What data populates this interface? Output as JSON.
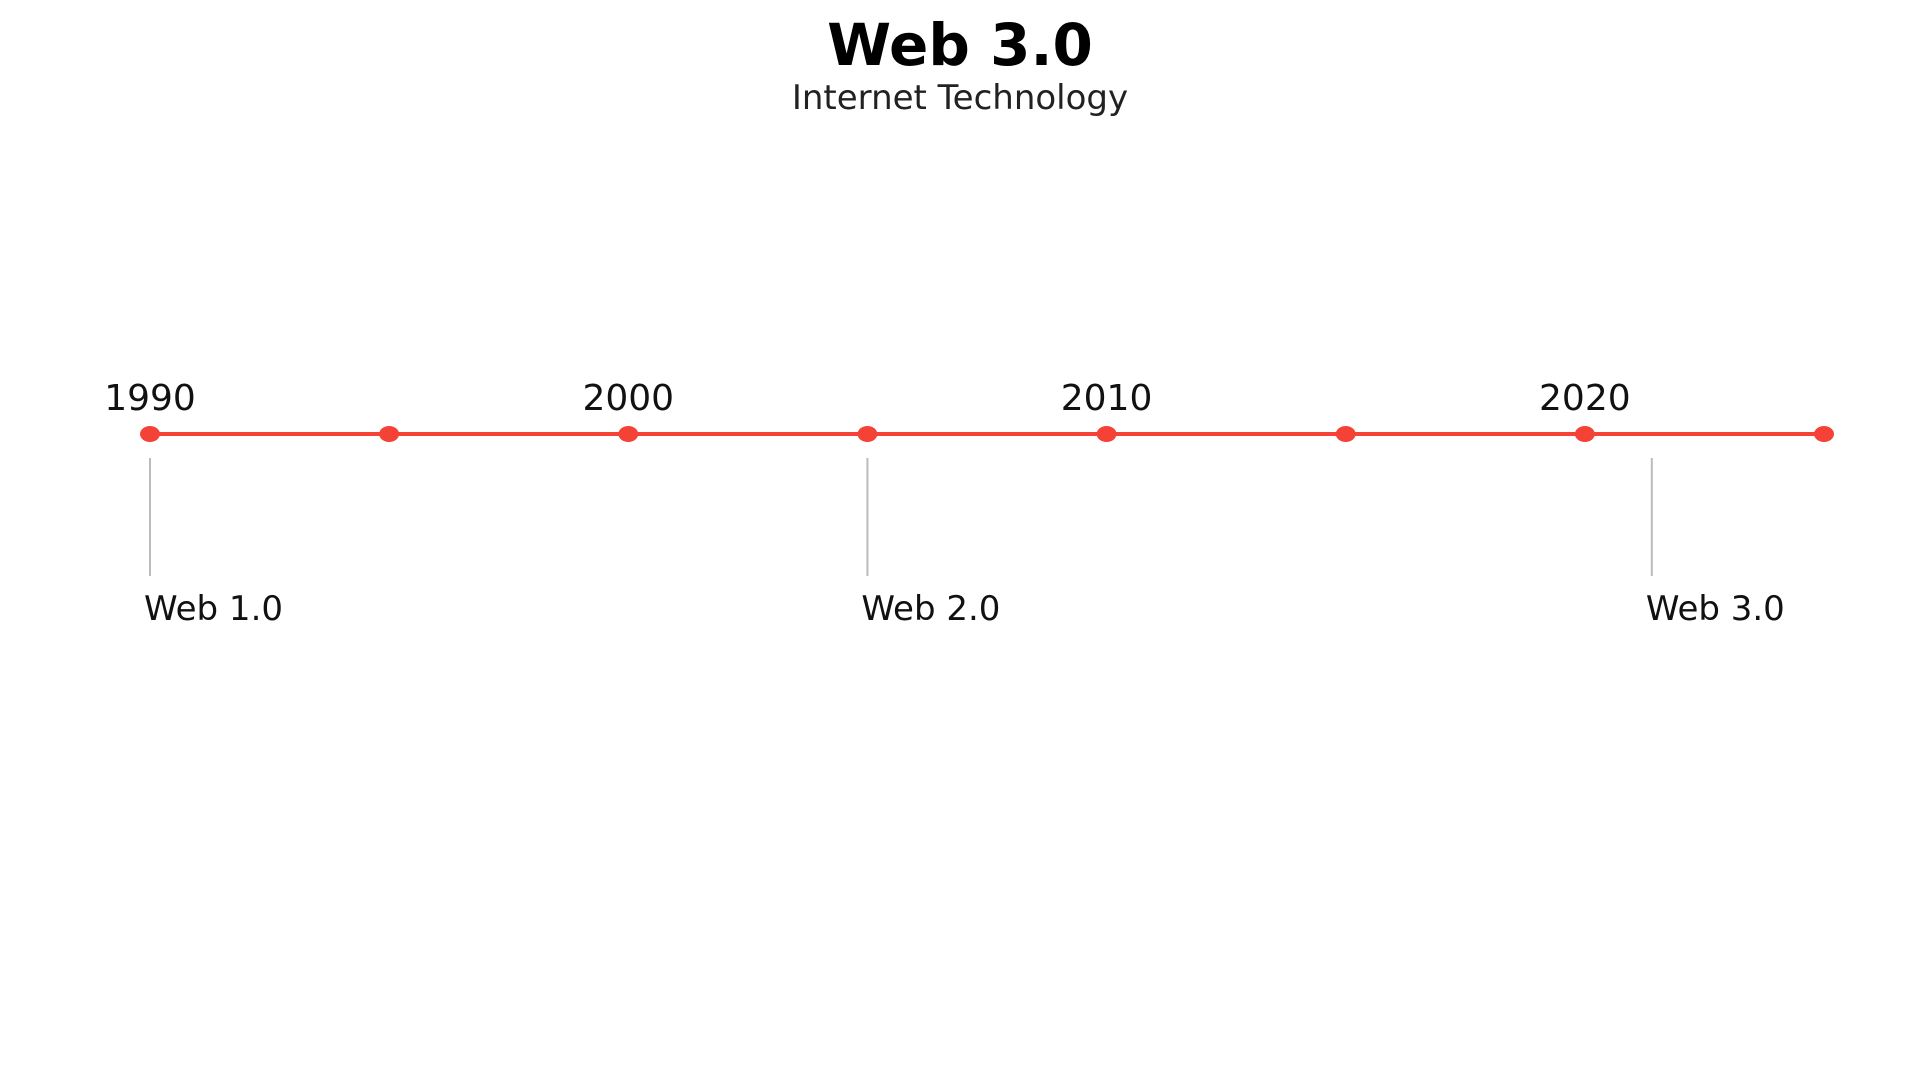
{
  "header": {
    "title": "Web 3.0",
    "subtitle": "Internet Technology"
  },
  "timeline": {
    "line_color": "#f44336",
    "connector_color": "#bbbbbb",
    "start_year": 1990,
    "end_year": 2025,
    "marker_years": [
      1990,
      1995,
      2000,
      2005,
      2010,
      2015,
      2020,
      2025
    ],
    "year_labels": [
      {
        "year": 1990,
        "text": "1990"
      },
      {
        "year": 2000,
        "text": "2000"
      },
      {
        "year": 2010,
        "text": "2010"
      },
      {
        "year": 2020,
        "text": "2020"
      }
    ],
    "events": [
      {
        "year": 1990,
        "label": "Web 1.0"
      },
      {
        "year": 2005,
        "label": "Web 2.0"
      },
      {
        "year": 2021.4,
        "label": "Web 3.0"
      }
    ]
  }
}
